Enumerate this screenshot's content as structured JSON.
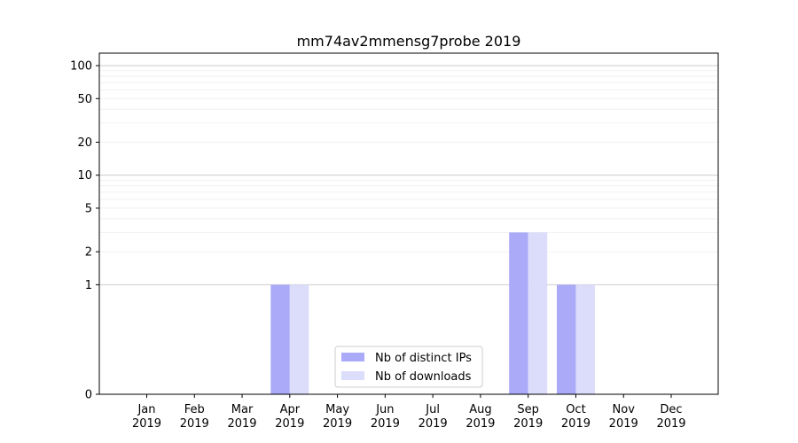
{
  "chart_data": {
    "type": "bar",
    "title": "mm74av2mmensg7probe 2019",
    "xlabel": "",
    "ylabel": "",
    "yscale": "symlog",
    "ylim": [
      0,
      130
    ],
    "y_ticks": [
      0,
      1,
      2,
      5,
      10,
      20,
      50,
      100
    ],
    "y_tick_labels": [
      "0",
      "1",
      "2",
      "5",
      "10",
      "20",
      "50",
      "100"
    ],
    "grid": true,
    "categories": [
      {
        "month": "Jan",
        "year": "2019"
      },
      {
        "month": "Feb",
        "year": "2019"
      },
      {
        "month": "Mar",
        "year": "2019"
      },
      {
        "month": "Apr",
        "year": "2019"
      },
      {
        "month": "May",
        "year": "2019"
      },
      {
        "month": "Jun",
        "year": "2019"
      },
      {
        "month": "Jul",
        "year": "2019"
      },
      {
        "month": "Aug",
        "year": "2019"
      },
      {
        "month": "Sep",
        "year": "2019"
      },
      {
        "month": "Oct",
        "year": "2019"
      },
      {
        "month": "Nov",
        "year": "2019"
      },
      {
        "month": "Dec",
        "year": "2019"
      }
    ],
    "series": [
      {
        "name": "Nb of distinct IPs",
        "color": "#aaaaf8",
        "values": [
          0,
          0,
          0,
          1,
          0,
          0,
          0,
          0,
          3,
          1,
          0,
          0
        ]
      },
      {
        "name": "Nb of downloads",
        "color": "#dcdcfb",
        "values": [
          0,
          0,
          0,
          1,
          0,
          0,
          0,
          0,
          3,
          1,
          0,
          0
        ]
      }
    ],
    "legend": {
      "placement": "lower-center"
    }
  }
}
